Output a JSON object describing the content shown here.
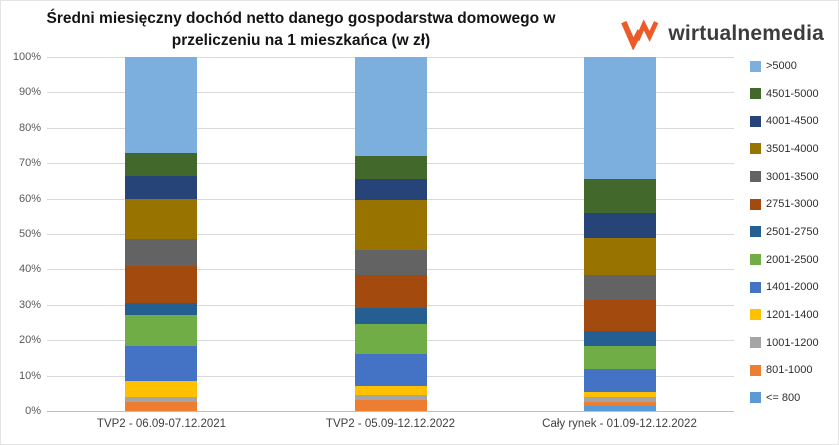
{
  "title": "Średni miesięczny dochód netto danego gospodarstwa domowego w przeliczeniu na 1 mieszkańca (w zł)",
  "logo": {
    "text": "wirtualnemedia",
    "accent_color": "#EB5A28",
    "text_color": "#3c3c3c"
  },
  "chart_data": {
    "type": "bar",
    "stacked": true,
    "units": "%",
    "ylim": [
      0,
      100
    ],
    "y_ticks": [
      "0%",
      "10%",
      "20%",
      "30%",
      "40%",
      "50%",
      "60%",
      "70%",
      "80%",
      "90%",
      "100%"
    ],
    "grid": true,
    "legend_position": "right",
    "categories": [
      "TVP2 - 06.09-07.12.2021",
      "TVP2 - 05.09-12.12.2022",
      "Cały rynek - 01.09-12.12.2022"
    ],
    "series": [
      {
        "name": "<= 800",
        "color": "#5B9BD5",
        "values": [
          0,
          0,
          1.5
        ]
      },
      {
        "name": "801-1000",
        "color": "#ED7D31",
        "values": [
          2.5,
          3,
          1
        ]
      },
      {
        "name": "1001-1200",
        "color": "#A5A5A5",
        "values": [
          1.5,
          1.5,
          1.5
        ]
      },
      {
        "name": "1201-1400",
        "color": "#FFC000",
        "values": [
          4.5,
          2.5,
          1.5
        ]
      },
      {
        "name": "1401-2000",
        "color": "#4472C4",
        "values": [
          10,
          9,
          6.5
        ]
      },
      {
        "name": "2001-2500",
        "color": "#70AD47",
        "values": [
          8.5,
          8.5,
          6.5
        ]
      },
      {
        "name": "2501-2750",
        "color": "#255E91",
        "values": [
          3.5,
          4.5,
          4
        ]
      },
      {
        "name": "2751-3000",
        "color": "#A34A0F",
        "values": [
          10.5,
          9.5,
          9
        ]
      },
      {
        "name": "3001-3500",
        "color": "#636363",
        "values": [
          7.5,
          7,
          7
        ]
      },
      {
        "name": "3501-4000",
        "color": "#997300",
        "values": [
          11.5,
          14,
          10.5
        ]
      },
      {
        "name": "4001-4500",
        "color": "#264478",
        "values": [
          6.5,
          6,
          7
        ]
      },
      {
        "name": "4501-5000",
        "color": "#43682B",
        "values": [
          6.5,
          6.5,
          9.5
        ]
      },
      {
        "name": ">5000",
        "color": "#7CAFDD",
        "values": [
          27,
          28,
          34.5
        ]
      }
    ]
  }
}
